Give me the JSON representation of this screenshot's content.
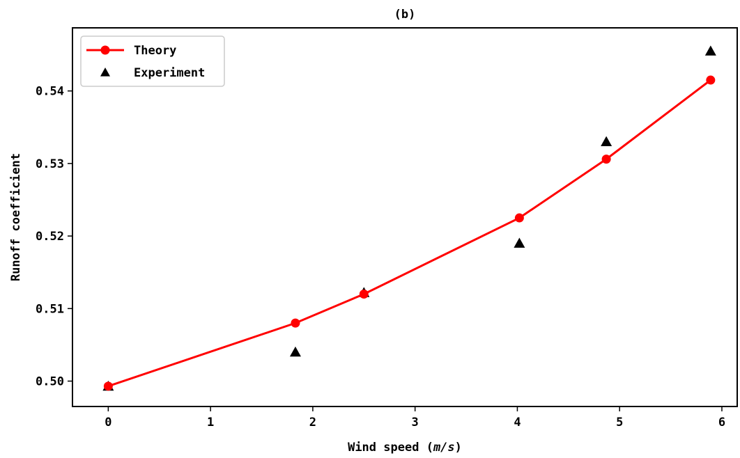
{
  "chart_data": {
    "type": "line",
    "title": "(b)",
    "xlabel_text": "Wind speed",
    "xlabel_unit": "m/s",
    "ylabel": "Runoff coefficient",
    "xlim": [
      -0.35,
      6.15
    ],
    "ylim": [
      0.4965,
      0.5487
    ],
    "xticks": [
      0,
      1,
      2,
      3,
      4,
      5,
      6
    ],
    "xtick_labels": [
      "0",
      "1",
      "2",
      "3",
      "4",
      "5",
      "6"
    ],
    "yticks": [
      0.5,
      0.51,
      0.52,
      0.53,
      0.54
    ],
    "ytick_labels": [
      "0.50",
      "0.51",
      "0.52",
      "0.53",
      "0.54"
    ],
    "grid": false,
    "legend_position": "top-left",
    "series": [
      {
        "name": "Theory",
        "type": "line",
        "marker": "circle",
        "color": "#ff0000",
        "x": [
          0.0,
          1.83,
          2.5,
          4.02,
          4.87,
          5.89
        ],
        "y": [
          0.4993,
          0.508,
          0.512,
          0.5225,
          0.5306,
          0.5415
        ]
      },
      {
        "name": "Experiment",
        "type": "scatter",
        "marker": "triangle",
        "color": "#000000",
        "x": [
          0.0,
          1.83,
          2.5,
          4.02,
          4.87,
          5.89
        ],
        "y": [
          0.4993,
          0.504,
          0.5122,
          0.519,
          0.533,
          0.5455
        ]
      }
    ]
  }
}
